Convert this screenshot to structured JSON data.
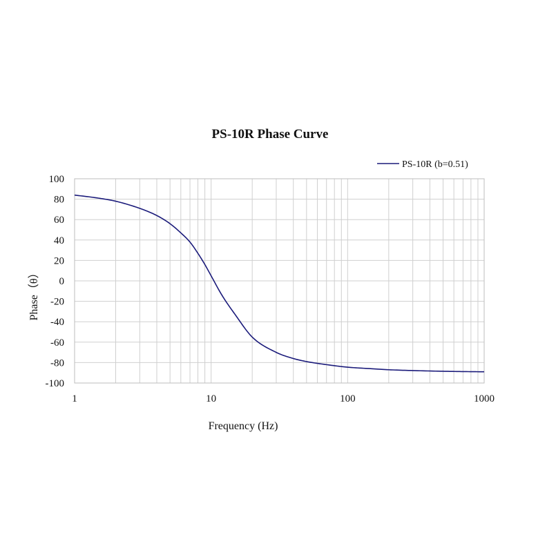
{
  "chart_data": {
    "type": "line",
    "title": "PS-10R Phase Curve",
    "xlabel": "Frequency (Hz)",
    "ylabel": "Phase（θ）",
    "x_scale": "log",
    "xlim": [
      1,
      1000
    ],
    "ylim": [
      -100,
      100
    ],
    "x_ticks": [
      1,
      10,
      100,
      1000
    ],
    "x_tick_labels": [
      "1",
      "10",
      "100",
      "1000"
    ],
    "y_ticks": [
      100,
      80,
      60,
      40,
      20,
      0,
      -20,
      -40,
      -60,
      -80,
      -100
    ],
    "y_tick_labels": [
      "100",
      "80",
      "60",
      "40",
      "20",
      "0",
      "-20",
      "-40",
      "-60",
      "-80",
      "-100"
    ],
    "grid": true,
    "legend_position": "top-right",
    "series": [
      {
        "name": "PS-10R (b=0.51)",
        "color": "#1a1a7a",
        "x": [
          1,
          1.5,
          2,
          3,
          4,
          5,
          6,
          7,
          8,
          9,
          10,
          12,
          15,
          20,
          30,
          40,
          50,
          70,
          100,
          150,
          200,
          300,
          500,
          700,
          1000
        ],
        "y": [
          84,
          81,
          78,
          71,
          64,
          56,
          47,
          38,
          27,
          16,
          5,
          -14,
          -33,
          -55,
          -70,
          -76,
          -79,
          -82,
          -84.5,
          -86,
          -87,
          -87.8,
          -88.5,
          -88.8,
          -89
        ]
      }
    ]
  }
}
